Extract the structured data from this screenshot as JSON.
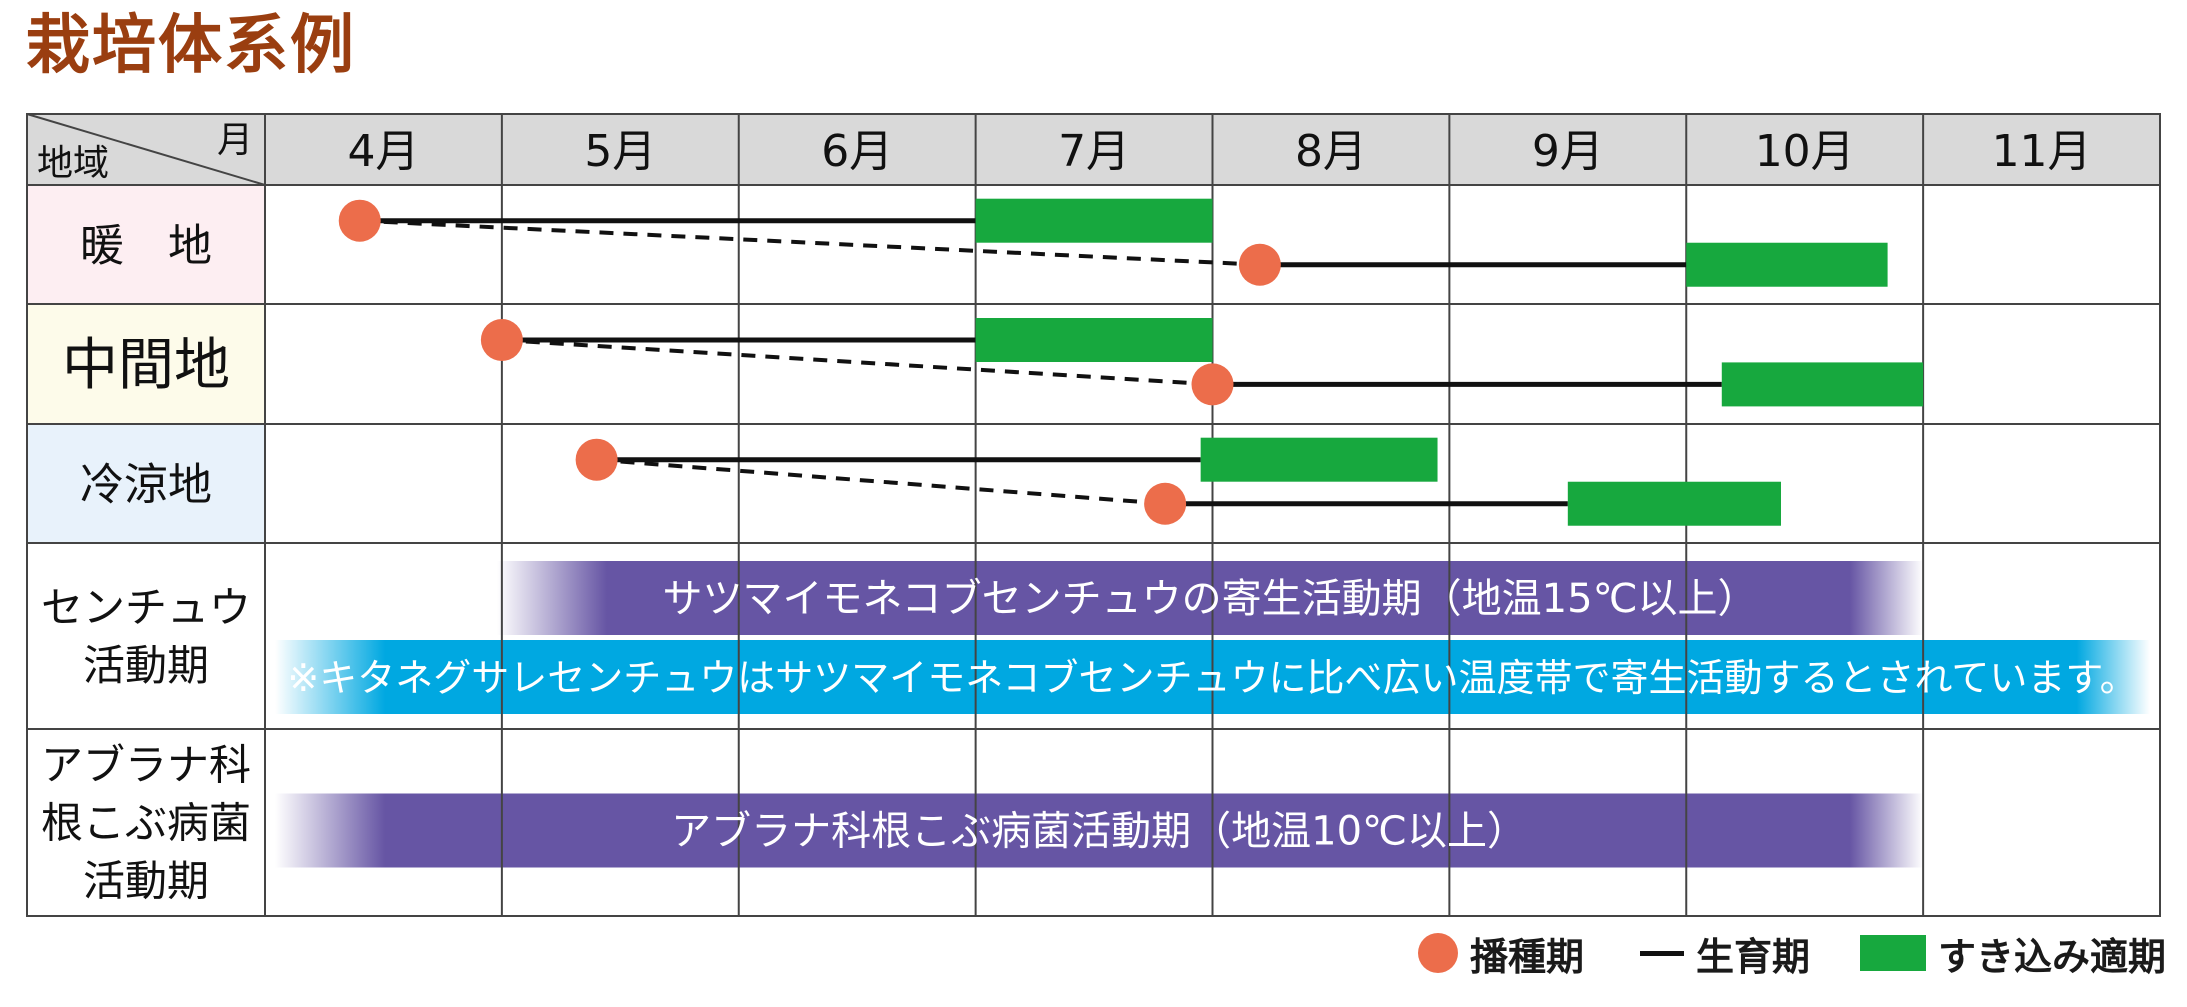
{
  "title": "栽培体系例",
  "header": {
    "corner_month": "月",
    "corner_region": "地域",
    "months": [
      "4月",
      "5月",
      "6月",
      "7月",
      "8月",
      "9月",
      "10月",
      "11月"
    ]
  },
  "rows": [
    {
      "label": "暖　地",
      "bg": "#fdeef2"
    },
    {
      "label": "中間地",
      "bg": "#fdfbea"
    },
    {
      "label": "冷涼地",
      "bg": "#e8f2fb"
    },
    {
      "label_lines": [
        "センチュウ",
        "活動期"
      ]
    },
    {
      "label_lines": [
        "アブラナ科",
        "根こぶ病菌",
        "活動期"
      ]
    }
  ],
  "schedules": [
    {
      "row": 0,
      "sow": 4.4,
      "incorp_start": 7.0,
      "incorp_end": 8.0
    },
    {
      "row": 0,
      "sow": 8.2,
      "incorp_start": 10.0,
      "incorp_end": 10.85
    },
    {
      "row": 1,
      "sow": 5.0,
      "incorp_start": 7.0,
      "incorp_end": 8.0
    },
    {
      "row": 1,
      "sow": 8.0,
      "incorp_start": 10.15,
      "incorp_end": 11.0
    },
    {
      "row": 2,
      "sow": 5.4,
      "incorp_start": 7.95,
      "incorp_end": 8.95
    },
    {
      "row": 2,
      "sow": 7.8,
      "incorp_start": 9.5,
      "incorp_end": 10.4
    }
  ],
  "activity_bars": [
    {
      "id": "nematode-bar-1",
      "text": "サツマイモネコブセンチュウの寄生活動期（地温15℃以上）",
      "color": "#6655a4",
      "start": 5.0,
      "end": 11.0,
      "row": 3,
      "slot": 0
    },
    {
      "id": "nematode-bar-2",
      "text": "※キタネグサレセンチュウはサツマイモネコブセンチュウに比べ広い温度帯で寄生活動するとされています。",
      "color": "#00a8e1",
      "start": 4.0,
      "end": 12.0,
      "row": 3,
      "slot": 1
    },
    {
      "id": "clubroot-bar",
      "text": "アブラナ科根こぶ病菌活動期（地温10℃以上）",
      "color": "#6655a4",
      "start": 4.0,
      "end": 11.0,
      "row": 4,
      "slot": 0
    }
  ],
  "legend": {
    "sowing": "播種期",
    "growing": "生育期",
    "incorporation": "すき込み適期"
  },
  "colors": {
    "sowing": "#ec6d4b",
    "incorporation": "#17a83e",
    "header_bg": "#d9d9d9",
    "grid": "#444444"
  }
}
